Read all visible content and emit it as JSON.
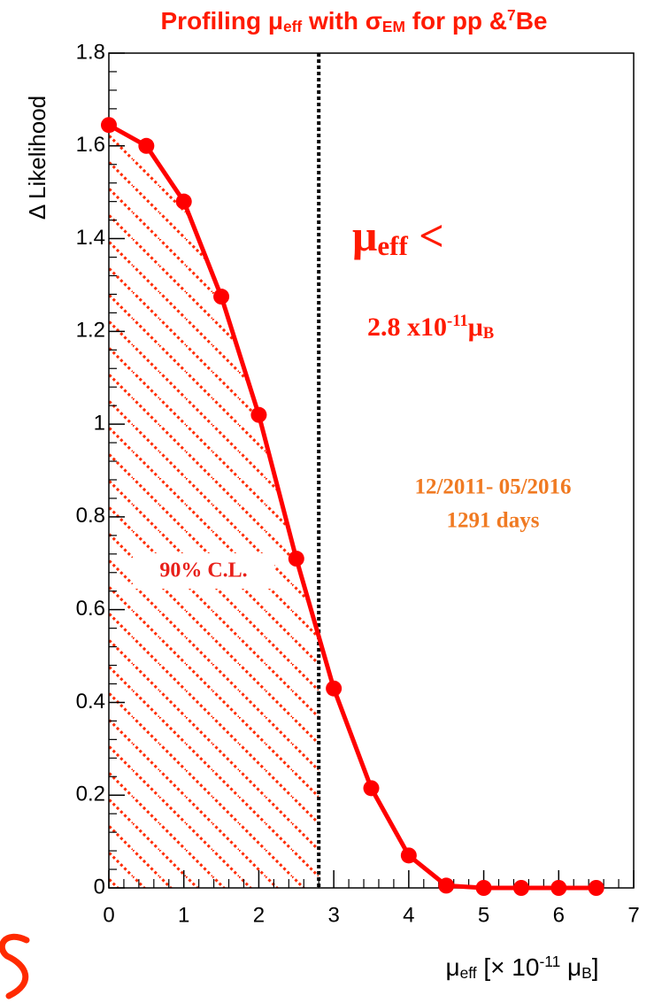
{
  "chart_data": {
    "type": "line",
    "title_parts": [
      "Profiling μ",
      "eff",
      " with σ",
      "EM",
      " for pp &",
      "7",
      "Be"
    ],
    "ylabel": "Δ Likelihood",
    "xlabel_parts": [
      "μ",
      "eff",
      " [× 10",
      "-11",
      " μ",
      "B",
      "]"
    ],
    "x": [
      0,
      0.5,
      1,
      1.5,
      2,
      2.5,
      3,
      3.5,
      4,
      4.5,
      5,
      5.5,
      6,
      6.5
    ],
    "series": [
      {
        "color": "#ff0000",
        "values": [
          1.645,
          1.6,
          1.48,
          1.275,
          1.02,
          0.71,
          0.43,
          0.215,
          0.07,
          0.005,
          0,
          0,
          0,
          0
        ]
      }
    ],
    "limit_line": 2.8,
    "xlim": [
      0,
      7
    ],
    "xticks": [
      0,
      1,
      2,
      3,
      4,
      5,
      6,
      7
    ],
    "ylim": [
      0,
      1.8
    ],
    "yticks": [
      0,
      0.2,
      0.4,
      0.6,
      0.8,
      1,
      1.2,
      1.4,
      1.6,
      1.8
    ],
    "annotations": {
      "cl": "90% C.L.",
      "limit_head": [
        "μ",
        "eff",
        " <"
      ],
      "limit_value": [
        "2.8 x10",
        "-11",
        "μ",
        "B"
      ],
      "period": "12/2011- 05/2016",
      "days": "1291 days"
    }
  }
}
